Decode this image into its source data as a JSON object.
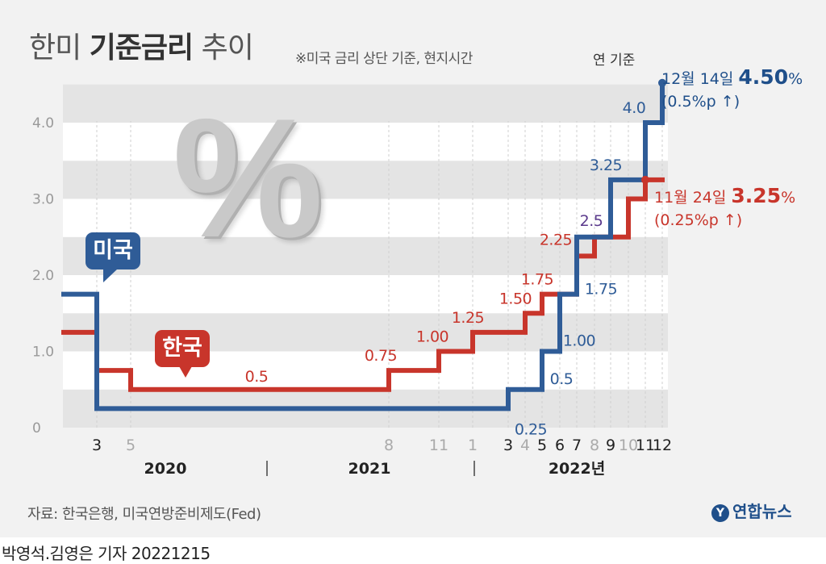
{
  "title": {
    "main_regular_1": "한미 ",
    "main_bold": "기준금리",
    "main_regular_2": " 추이",
    "note": "※미국 금리 상단 기준, 현지시간"
  },
  "unit_label": "연 기준",
  "tags": {
    "us": "미국",
    "kr": "한국"
  },
  "decor_symbol": "%",
  "callouts": {
    "us": {
      "date": "12월 14일 ",
      "rate": "4.50",
      "pct": "%",
      "change": "(0.5%p ↑)"
    },
    "kr": {
      "date": "11월 24일 ",
      "rate": "3.25",
      "pct": "%",
      "change": "(0.25%p ↑)"
    }
  },
  "source": "자료: 한국은행, 미국연방준비제도(Fed)",
  "logo": {
    "mark": "Y",
    "text": "연합뉴스"
  },
  "byline": "박영석.김영은 기자  20221215",
  "colors": {
    "us": "#2f5c97",
    "kr": "#c8352b",
    "purple": "#5b3a8c",
    "grid_light": "#ffffff",
    "grid_dark": "#e4e4e4",
    "axis_text": "#999999"
  },
  "chart_data": {
    "type": "line",
    "step": true,
    "ylim": [
      0,
      4.5
    ],
    "yticks": [
      "0",
      "1.0",
      "2.0",
      "3.0",
      "4.0"
    ],
    "x_month_ticks": [
      {
        "key": "2020-03",
        "label": "3",
        "strong": true
      },
      {
        "key": "2020-05",
        "label": "5",
        "strong": false
      },
      {
        "key": "2021-08",
        "label": "8",
        "strong": false
      },
      {
        "key": "2021-11",
        "label": "11",
        "strong": false
      },
      {
        "key": "2022-01",
        "label": "1",
        "strong": false
      },
      {
        "key": "2022-03",
        "label": "3",
        "strong": true
      },
      {
        "key": "2022-04",
        "label": "4",
        "strong": false
      },
      {
        "key": "2022-05",
        "label": "5",
        "strong": true
      },
      {
        "key": "2022-06",
        "label": "6",
        "strong": true
      },
      {
        "key": "2022-07",
        "label": "7",
        "strong": true
      },
      {
        "key": "2022-08",
        "label": "8",
        "strong": false
      },
      {
        "key": "2022-09",
        "label": "9",
        "strong": true
      },
      {
        "key": "2022-10",
        "label": "10",
        "strong": false
      },
      {
        "key": "2022-11",
        "label": "11",
        "strong": true
      },
      {
        "key": "2022-12",
        "label": "12",
        "strong": true
      }
    ],
    "years": [
      {
        "label": "2020",
        "key": "2020-07"
      },
      {
        "label": "2021",
        "key": "2021-07"
      },
      {
        "label": "2022년",
        "key": "2022-07"
      }
    ],
    "series": [
      {
        "name": "미국",
        "color": "#2f5c97",
        "points": [
          {
            "x": "2020-03",
            "y": 1.75
          },
          {
            "x": "2020-03",
            "y": 1.25
          },
          {
            "x": "2020-03",
            "y": 0.25
          },
          {
            "x": "2022-03",
            "y": 0.5
          },
          {
            "x": "2022-05",
            "y": 1.0
          },
          {
            "x": "2022-06",
            "y": 1.75
          },
          {
            "x": "2022-07",
            "y": 2.5
          },
          {
            "x": "2022-09",
            "y": 3.25
          },
          {
            "x": "2022-11",
            "y": 4.0
          },
          {
            "x": "2022-12",
            "y": 4.5
          }
        ],
        "labels": [
          {
            "x": "2022-03",
            "y": 0.25,
            "text": "0.25"
          },
          {
            "x": "2022-05",
            "y": 0.5,
            "text": "0.5"
          },
          {
            "x": "2022-06",
            "y": 1.0,
            "text": "1.00"
          },
          {
            "x": "2022-07",
            "y": 1.75,
            "text": "1.75"
          },
          {
            "x": "2022-09",
            "y": 3.25,
            "text": "3.25"
          },
          {
            "x": "2022-11",
            "y": 4.0,
            "text": "4.0"
          }
        ]
      },
      {
        "name": "한국",
        "color": "#c8352b",
        "points": [
          {
            "x": "2020-03",
            "y": 1.25
          },
          {
            "x": "2020-03",
            "y": 0.75
          },
          {
            "x": "2020-05",
            "y": 0.5
          },
          {
            "x": "2021-08",
            "y": 0.75
          },
          {
            "x": "2021-11",
            "y": 1.0
          },
          {
            "x": "2022-01",
            "y": 1.25
          },
          {
            "x": "2022-04",
            "y": 1.5
          },
          {
            "x": "2022-05",
            "y": 1.75
          },
          {
            "x": "2022-07",
            "y": 2.25
          },
          {
            "x": "2022-08",
            "y": 2.5
          },
          {
            "x": "2022-10",
            "y": 3.0
          },
          {
            "x": "2022-11",
            "y": 3.25
          }
        ],
        "labels": [
          {
            "x": "2021-01",
            "y": 0.5,
            "text": "0.5"
          },
          {
            "x": "2021-08",
            "y": 0.75,
            "text": "0.75"
          },
          {
            "x": "2021-11",
            "y": 1.0,
            "text": "1.00"
          },
          {
            "x": "2022-01",
            "y": 1.25,
            "text": "1.25"
          },
          {
            "x": "2022-04",
            "y": 1.5,
            "text": "1.50"
          },
          {
            "x": "2022-05",
            "y": 1.75,
            "text": "1.75"
          },
          {
            "x": "2022-07",
            "y": 2.25,
            "text": "2.25"
          }
        ]
      }
    ],
    "shared_labels": [
      {
        "x": "2022-08",
        "y": 2.5,
        "text": "2.5"
      }
    ]
  }
}
